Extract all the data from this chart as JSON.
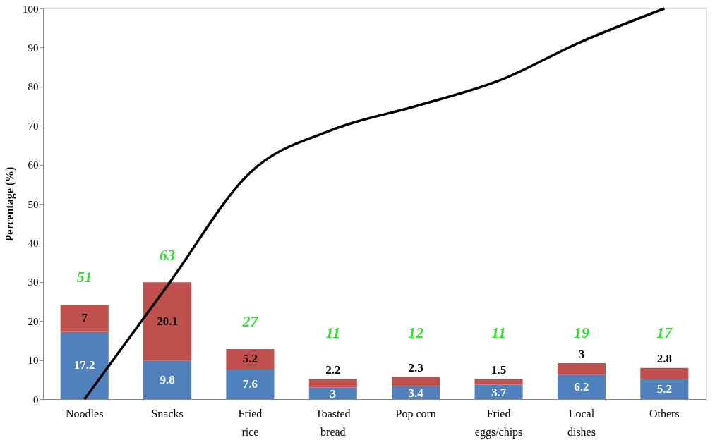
{
  "chart_data": {
    "type": "bar",
    "stacked": true,
    "ylabel": "Percentage (%)",
    "categories": [
      "Noodles",
      "Snacks",
      "Fried\nrice",
      "Toasted\nbread",
      "Pop corn",
      "Fried\neggs/chips",
      "Local\ndishes",
      "Others"
    ],
    "series": [
      {
        "color": "#4f81bd",
        "values": [
          17.2,
          9.8,
          7.6,
          3,
          3.4,
          3.7,
          6.2,
          5.2
        ],
        "value_labels": [
          "17.2",
          "9.8",
          "7.6",
          "3",
          "3.4",
          "3.7",
          "6.2",
          "5.2"
        ]
      },
      {
        "color": "#c0504d",
        "values": [
          7,
          20.1,
          5.2,
          2.2,
          2.3,
          1.5,
          3,
          2.8
        ],
        "value_labels": [
          "7",
          "20.1",
          "5.2",
          "2.2",
          "2.3",
          "1.5",
          "3",
          "2.8"
        ]
      },
      {
        "type": "line",
        "color": "#000000",
        "values": [
          0,
          29,
          58,
          69,
          75,
          81.5,
          91.5,
          100
        ]
      }
    ],
    "annotations": [
      "51",
      "63",
      "27",
      "11",
      "12",
      "11",
      "19",
      "17"
    ],
    "ylim": [
      0,
      100
    ],
    "yticks": [
      0,
      10,
      20,
      30,
      40,
      50,
      60,
      70,
      80,
      90,
      100
    ],
    "grid": false,
    "marker": "none",
    "line_style": "solid"
  }
}
